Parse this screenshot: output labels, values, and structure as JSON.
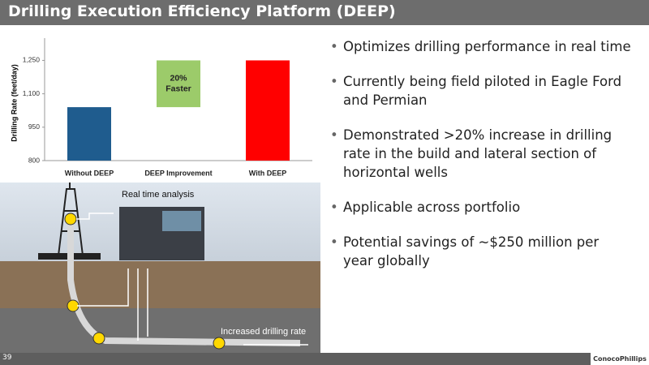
{
  "header": {
    "title": "Drilling Execution Efficiency Platform (DEEP)"
  },
  "chart_data": {
    "type": "waterfall",
    "y_label": "Drilling Rate (feet/day)",
    "categories": [
      "Without DEEP",
      "DEEP Improvement",
      "With DEEP"
    ],
    "values": [
      1040,
      210,
      1250
    ],
    "colors": [
      "#1f5c8e",
      "#9ccb6a",
      "#ff0000"
    ],
    "annotation": [
      "20%",
      "Faster"
    ],
    "ylim": [
      800,
      1350
    ],
    "yticks": [
      800,
      950,
      {
        "value": 1100,
        "label": "1,100"
      },
      {
        "value": 1250,
        "label": "1,250"
      }
    ],
    "grid": false
  },
  "illustration": {
    "labels": [
      "Real time analysis",
      "Increased drilling rate"
    ]
  },
  "bullets": [
    "Optimizes drilling performance in real time",
    "Currently being field piloted in Eagle Ford and Permian",
    "Demonstrated >20% increase in drilling rate in the build and lateral section of horizontal wells",
    "Applicable across portfolio",
    "Potential savings of ~$250 million per year globally"
  ],
  "footer": {
    "page": "39",
    "logo": "ConocoPhillips"
  }
}
